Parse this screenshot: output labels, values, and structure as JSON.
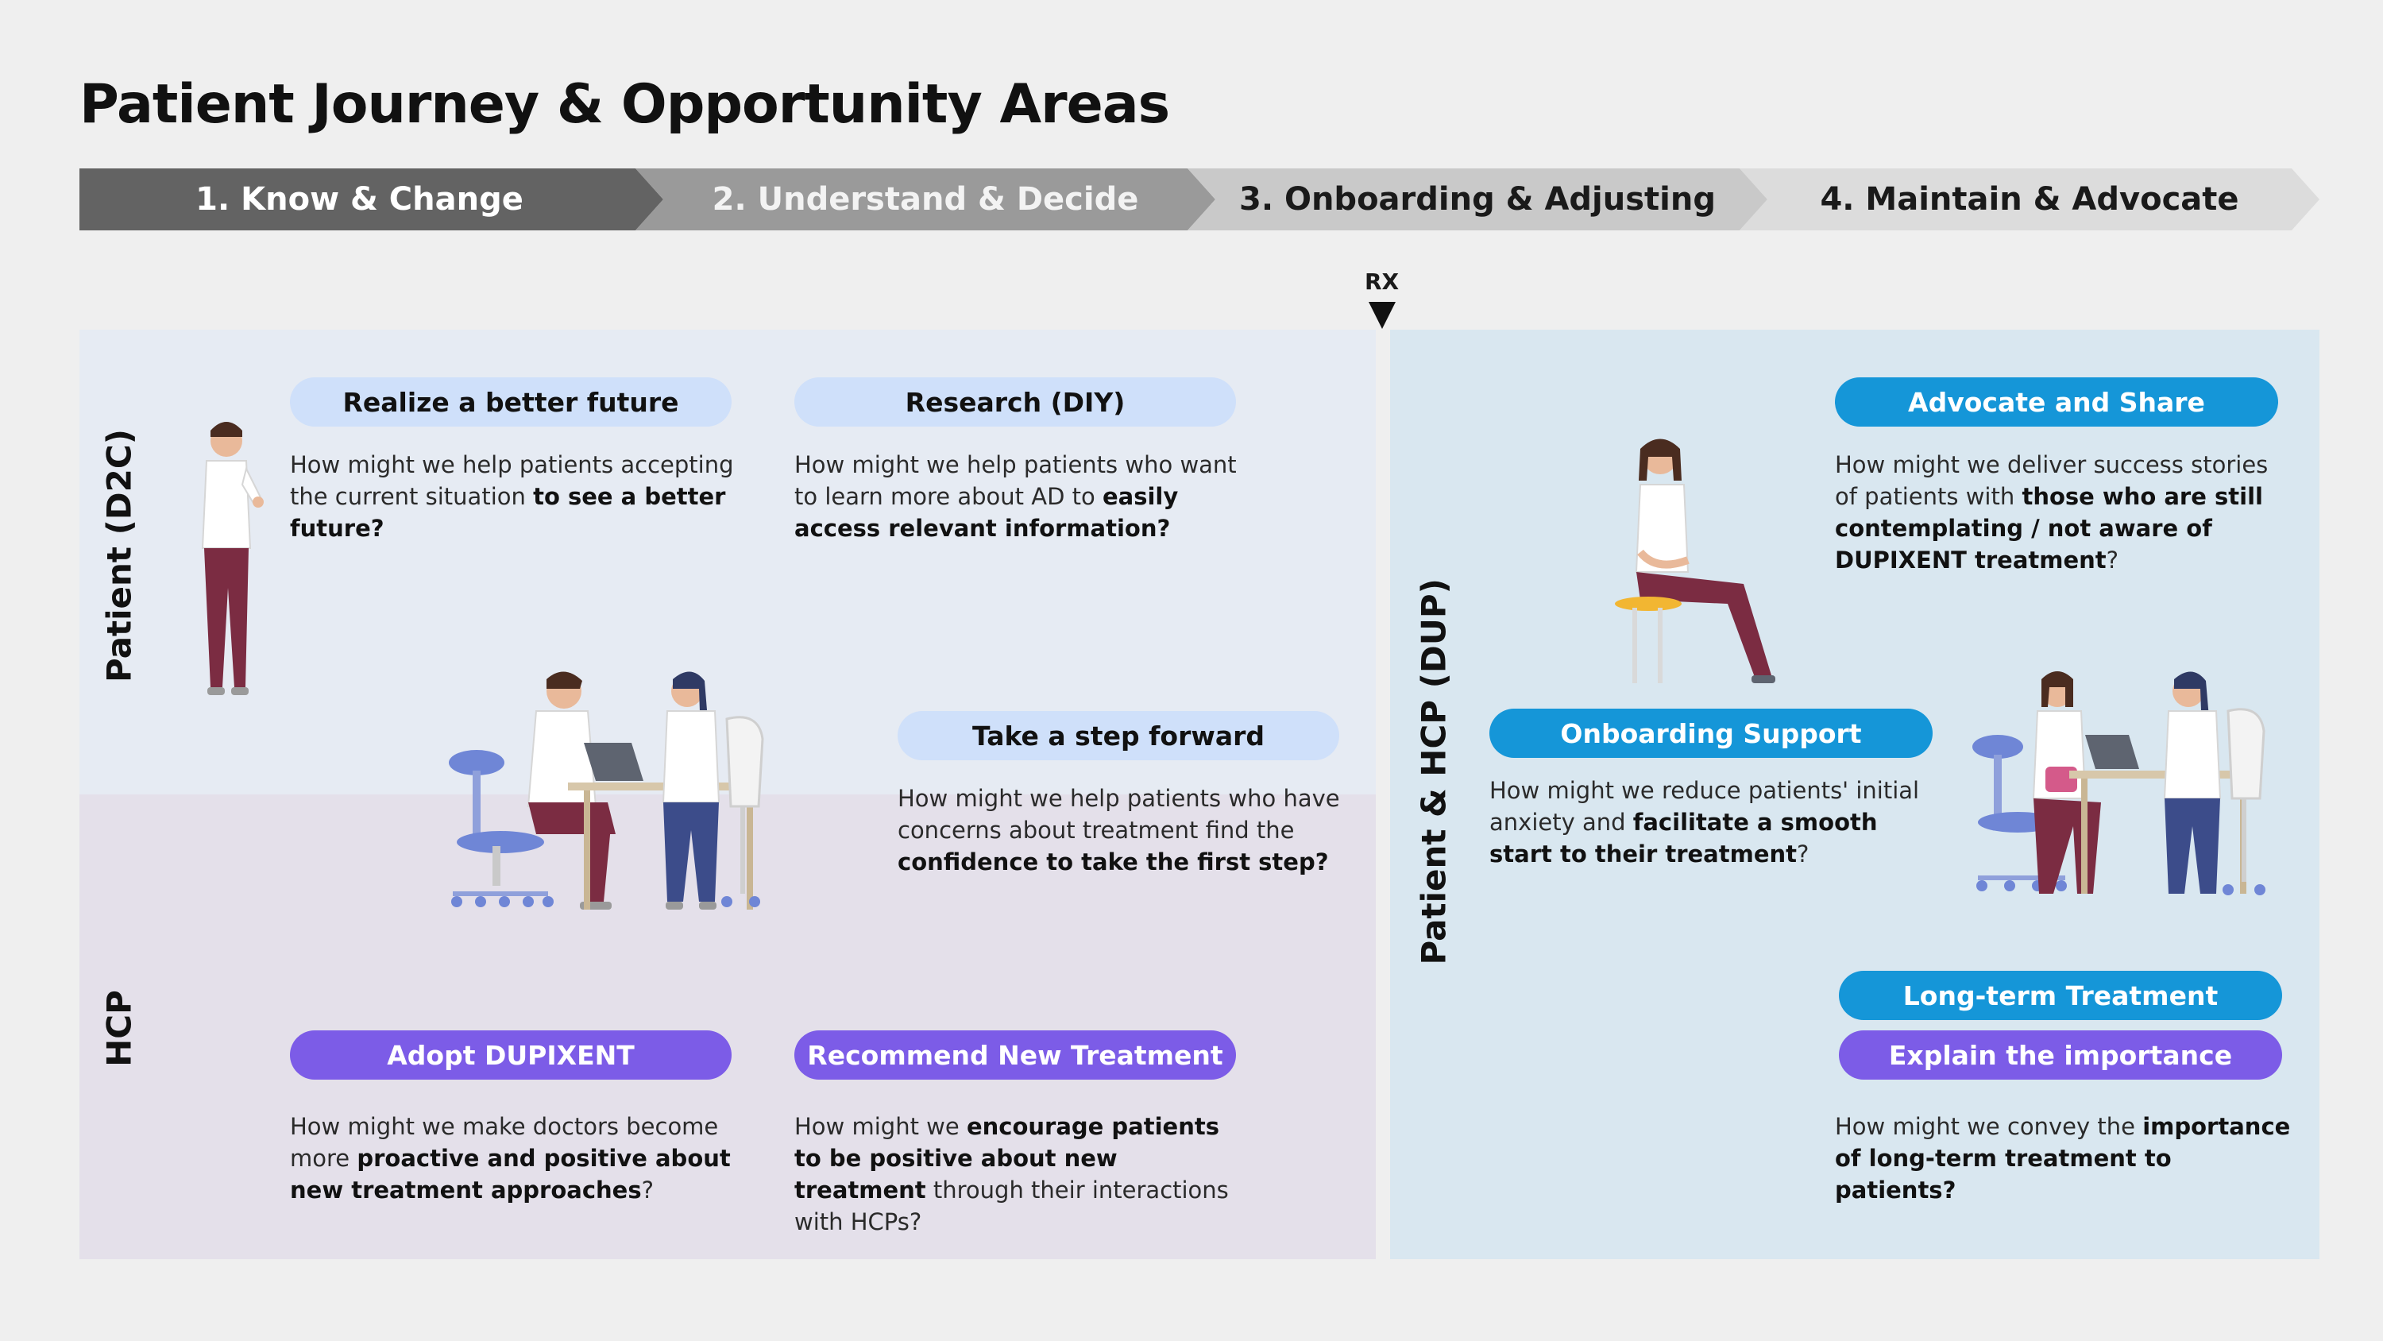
{
  "title": "Patient Journey & Opportunity Areas",
  "phases": [
    {
      "label": "1. Know & Change",
      "bg": "#636363",
      "fg": "#ffffff"
    },
    {
      "label": "2. Understand & Decide",
      "bg": "#9a9a9a",
      "fg": "#f3f3f3"
    },
    {
      "label": "3.  Onboarding & Adjusting",
      "bg": "#c9c9c9",
      "fg": "#1a1a1a"
    },
    {
      "label": "4. Maintain & Advocate",
      "bg": "#dcdcdc",
      "fg": "#1a1a1a"
    }
  ],
  "rx_label": "RX",
  "rows": {
    "patient_label": "Patient (D2C)",
    "hcp_label": "HCP",
    "right_label": "Patient & HCP (DUP)"
  },
  "colors": {
    "patient_bg": "#e6ebf3",
    "hcp_bg": "#e4e0ea",
    "right_bg": "#d9e7f0",
    "pill_light": "#cfe0fa",
    "pill_blue": "#1596d8",
    "pill_purple": "#7c5ce7"
  },
  "cards": {
    "realize": {
      "title": "Realize a better  future",
      "pre": "How might we help patients accepting the current situation ",
      "bold": "to see a better future?",
      "post": ""
    },
    "research": {
      "title": "Research (DIY)",
      "pre": "How might we help patients who want to learn more about AD to ",
      "bold": "easily access relevant information?",
      "post": ""
    },
    "step": {
      "title": "Take a step forward",
      "pre": "How might we help patients who have concerns about treatment find the ",
      "bold": "confidence to take the first step?",
      "post": ""
    },
    "adopt": {
      "title": "Adopt DUPIXENT",
      "pre": "How might we make doctors become more ",
      "bold": "proactive and positive about new treatment approaches",
      "post": "?"
    },
    "recommend": {
      "title": "Recommend New Treatment",
      "pre": "How might we ",
      "bold": "encourage patients to be positive about new treatment",
      "post": " through their interactions with HCPs?"
    },
    "advocate": {
      "title": "Advocate and Share",
      "pre": "How might we deliver success stories of patients with ",
      "bold": "those who are still contemplating / not aware of DUPIXENT treatment",
      "post": "?"
    },
    "onboarding": {
      "title": "Onboarding Support",
      "pre": "How might we reduce patients' initial anxiety and ",
      "bold": "facilitate a smooth start to their treatment",
      "post": "?"
    },
    "longterm": {
      "title": "Long-term Treatment",
      "title2": "Explain the importance",
      "pre": "How might we convey the ",
      "bold": "importance of long-term treatment to patients?",
      "post": ""
    }
  }
}
